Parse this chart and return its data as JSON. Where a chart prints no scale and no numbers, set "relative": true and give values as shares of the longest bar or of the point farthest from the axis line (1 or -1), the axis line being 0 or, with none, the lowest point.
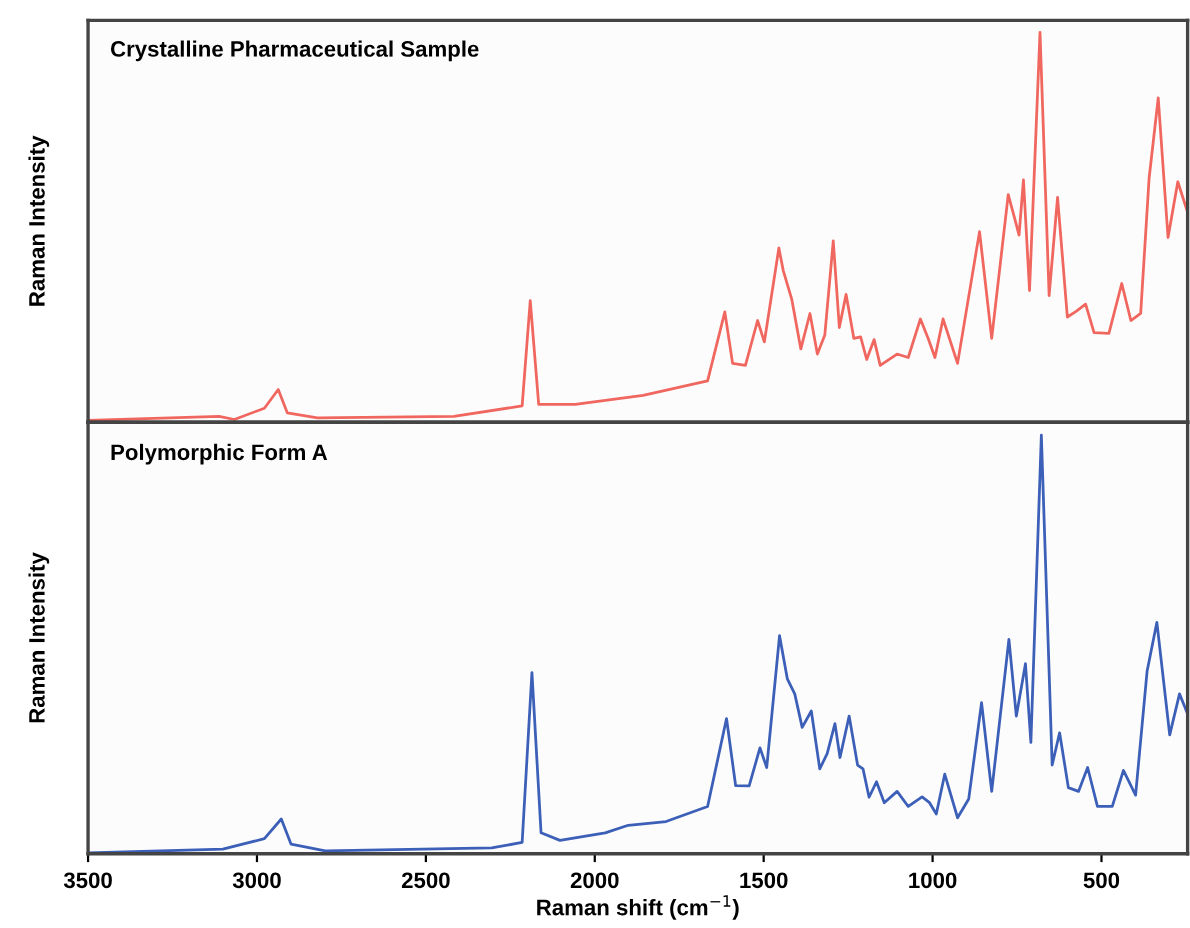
{
  "chart_data": [
    {
      "type": "line",
      "title": "Crystalline Pharmaceutical Sample",
      "ylabel": "Raman Intensity",
      "relative": true,
      "xlim": [
        3500,
        245
      ],
      "tick_labels": false,
      "grid": false,
      "legend": false,
      "series": [
        {
          "color": "#f0675f",
          "x": [
            3500,
            3112,
            3067,
            2978,
            2937,
            2910,
            2821,
            2417,
            2215,
            2191,
            2166,
            2058,
            1857,
            1666,
            1615,
            1592,
            1554,
            1518,
            1498,
            1455,
            1442,
            1417,
            1390,
            1363,
            1341,
            1319,
            1294,
            1276,
            1256,
            1233,
            1213,
            1195,
            1173,
            1155,
            1105,
            1072,
            1036,
            1013,
            993,
            969,
            926,
            861,
            825,
            776,
            758,
            744,
            731,
            713,
            682,
            655,
            630,
            601,
            574,
            547,
            522,
            478,
            440,
            413,
            384,
            359,
            332,
            303,
            274,
            247
          ],
          "values": [
            0.005,
            0.015,
            0.007,
            0.036,
            0.084,
            0.024,
            0.011,
            0.015,
            0.042,
            0.312,
            0.046,
            0.046,
            0.069,
            0.106,
            0.283,
            0.151,
            0.146,
            0.261,
            0.206,
            0.447,
            0.389,
            0.316,
            0.188,
            0.279,
            0.175,
            0.224,
            0.465,
            0.243,
            0.328,
            0.215,
            0.219,
            0.161,
            0.212,
            0.146,
            0.175,
            0.166,
            0.265,
            0.215,
            0.166,
            0.265,
            0.151,
            0.489,
            0.215,
            0.584,
            0.526,
            0.48,
            0.622,
            0.338,
            1.0,
            0.325,
            0.577,
            0.27,
            0.285,
            0.303,
            0.23,
            0.228,
            0.356,
            0.261,
            0.279,
            0.626,
            0.832,
            0.474,
            0.617,
            0.544
          ]
        }
      ]
    },
    {
      "type": "line",
      "title": "Polymorphic Form A",
      "ylabel": "Raman Intensity",
      "xlabel": "Raman shift (cm$^{−1}$)",
      "relative": true,
      "xlim": [
        3500,
        245
      ],
      "xticks": [
        3500,
        3000,
        2500,
        2000,
        1500,
        1000,
        500
      ],
      "tick_labels": "x",
      "grid": false,
      "legend": false,
      "series": [
        {
          "color": "#3c5fb8",
          "x": [
            3500,
            3101,
            2978,
            2928,
            2899,
            2798,
            2305,
            2215,
            2186,
            2159,
            2103,
            1969,
            1901,
            1789,
            1666,
            1610,
            1583,
            1543,
            1511,
            1491,
            1453,
            1430,
            1408,
            1386,
            1359,
            1334,
            1312,
            1289,
            1274,
            1247,
            1222,
            1206,
            1188,
            1166,
            1143,
            1105,
            1072,
            1031,
            1009,
            989,
            964,
            926,
            893,
            855,
            825,
            774,
            752,
            725,
            709,
            678,
            646,
            624,
            598,
            568,
            541,
            512,
            468,
            435,
            399,
            365,
            336,
            298,
            269,
            247
          ],
          "values": [
            0.002,
            0.011,
            0.036,
            0.083,
            0.023,
            0.007,
            0.014,
            0.027,
            0.433,
            0.05,
            0.032,
            0.05,
            0.068,
            0.077,
            0.113,
            0.323,
            0.163,
            0.162,
            0.253,
            0.206,
            0.521,
            0.418,
            0.382,
            0.302,
            0.341,
            0.203,
            0.239,
            0.311,
            0.23,
            0.329,
            0.212,
            0.203,
            0.135,
            0.172,
            0.122,
            0.149,
            0.113,
            0.136,
            0.122,
            0.095,
            0.19,
            0.086,
            0.131,
            0.361,
            0.149,
            0.512,
            0.329,
            0.454,
            0.266,
            1.0,
            0.212,
            0.289,
            0.158,
            0.149,
            0.206,
            0.113,
            0.113,
            0.199,
            0.14,
            0.436,
            0.553,
            0.284,
            0.382,
            0.338
          ]
        }
      ]
    }
  ]
}
